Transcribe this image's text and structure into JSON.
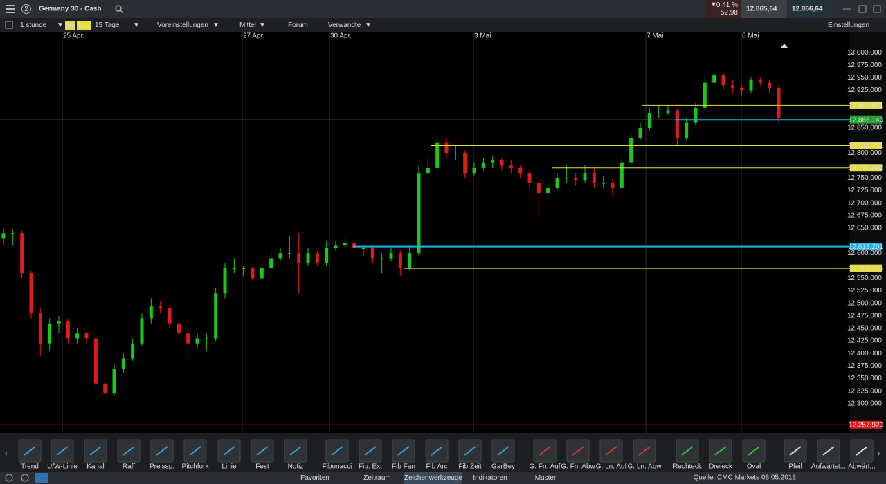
{
  "header": {
    "badge": "2",
    "title": "Germany 30 - Cash",
    "change_pct": "0,41 %",
    "change_abs": "52,98",
    "sell": "12.865,64",
    "buy": "12.866,64"
  },
  "toolbar": {
    "interval": "1 stunde",
    "quick1": "5m",
    "quick2": "1std",
    "range": "15 Tage",
    "presets": "Voreinstellungen",
    "size": "Mittel",
    "forum": "Forum",
    "related": "Verwandte",
    "settings": "Einstellungen"
  },
  "chart": {
    "type": "candlestick",
    "dates": [
      "25 Apr.",
      "27 Apr.",
      "30 Apr.",
      "3 Mai",
      "7 Mai",
      "8 Mai"
    ],
    "ylim": [
      12250,
      13025
    ],
    "yticks": [
      {
        "value": 13000,
        "label": "13.000.000"
      },
      {
        "value": 12975,
        "label": "12.975.000"
      },
      {
        "value": 12950,
        "label": "12.950.000"
      },
      {
        "value": 12925,
        "label": "12.925.000"
      },
      {
        "value": 12850,
        "label": "12.850.000"
      },
      {
        "value": 12800,
        "label": "12.800.000"
      },
      {
        "value": 12750,
        "label": "12.750.000"
      },
      {
        "value": 12725,
        "label": "12.725.000"
      },
      {
        "value": 12700,
        "label": "12.700.000"
      },
      {
        "value": 12675,
        "label": "12.675.000"
      },
      {
        "value": 12650,
        "label": "12.650.000"
      },
      {
        "value": 12600,
        "label": "12.600.000"
      },
      {
        "value": 12550,
        "label": "12.550.000"
      },
      {
        "value": 12525,
        "label": "12.525.000"
      },
      {
        "value": 12500,
        "label": "12.500.000"
      },
      {
        "value": 12475,
        "label": "12.475.000"
      },
      {
        "value": 12450,
        "label": "12.450.000"
      },
      {
        "value": 12425,
        "label": "12.425.000"
      },
      {
        "value": 12400,
        "label": "12.400.000"
      },
      {
        "value": 12375,
        "label": "12.375.000"
      },
      {
        "value": 12350,
        "label": "12.350.000"
      },
      {
        "value": 12325,
        "label": "12.325.000"
      },
      {
        "value": 12300,
        "label": "12.300.000"
      }
    ],
    "up_color": "#19c819",
    "down_color": "#e01b1b",
    "candles": [
      [
        12630,
        12650,
        12615,
        12640
      ],
      [
        12640,
        12648,
        12615,
        12640
      ],
      [
        12640,
        12645,
        12550,
        12560
      ],
      [
        12560,
        12565,
        12470,
        12480
      ],
      [
        12480,
        12490,
        12395,
        12420
      ],
      [
        12420,
        12470,
        12405,
        12460
      ],
      [
        12460,
        12475,
        12440,
        12465
      ],
      [
        12465,
        12470,
        12420,
        12430
      ],
      [
        12430,
        12450,
        12420,
        12440
      ],
      [
        12440,
        12445,
        12420,
        12430
      ],
      [
        12430,
        12435,
        12330,
        12340
      ],
      [
        12340,
        12350,
        12310,
        12320
      ],
      [
        12320,
        12380,
        12315,
        12370
      ],
      [
        12370,
        12400,
        12360,
        12390
      ],
      [
        12390,
        12430,
        12385,
        12420
      ],
      [
        12420,
        12480,
        12415,
        12470
      ],
      [
        12470,
        12510,
        12460,
        12495
      ],
      [
        12495,
        12505,
        12480,
        12490
      ],
      [
        12490,
        12495,
        12450,
        12460
      ],
      [
        12460,
        12470,
        12430,
        12440
      ],
      [
        12440,
        12450,
        12385,
        12420
      ],
      [
        12420,
        12440,
        12410,
        12430
      ],
      [
        12430,
        12440,
        12405,
        12430
      ],
      [
        12430,
        12530,
        12425,
        12520
      ],
      [
        12520,
        12580,
        12510,
        12570
      ],
      [
        12570,
        12590,
        12560,
        12570
      ],
      [
        12570,
        12575,
        12555,
        12570
      ],
      [
        12570,
        12575,
        12545,
        12550
      ],
      [
        12550,
        12580,
        12545,
        12570
      ],
      [
        12570,
        12600,
        12565,
        12590
      ],
      [
        12590,
        12610,
        12585,
        12600
      ],
      [
        12600,
        12635,
        12590,
        12600
      ],
      [
        12600,
        12640,
        12520,
        12580
      ],
      [
        12580,
        12610,
        12575,
        12600
      ],
      [
        12600,
        12605,
        12575,
        12580
      ],
      [
        12580,
        12625,
        12575,
        12610
      ],
      [
        12610,
        12625,
        12605,
        12615
      ],
      [
        12615,
        12630,
        12610,
        12620
      ],
      [
        12620,
        12625,
        12600,
        12610
      ],
      [
        12610,
        12615,
        12595,
        12610
      ],
      [
        12610,
        12615,
        12580,
        12590
      ],
      [
        12590,
        12600,
        12560,
        12590
      ],
      [
        12590,
        12610,
        12585,
        12600
      ],
      [
        12600,
        12605,
        12555,
        12570
      ],
      [
        12570,
        12615,
        12565,
        12600
      ],
      [
        12600,
        12775,
        12595,
        12760
      ],
      [
        12760,
        12790,
        12750,
        12770
      ],
      [
        12770,
        12835,
        12765,
        12820
      ],
      [
        12820,
        12830,
        12790,
        12800
      ],
      [
        12800,
        12815,
        12785,
        12800
      ],
      [
        12800,
        12805,
        12750,
        12760
      ],
      [
        12760,
        12780,
        12755,
        12770
      ],
      [
        12770,
        12790,
        12765,
        12780
      ],
      [
        12780,
        12795,
        12770,
        12785
      ],
      [
        12785,
        12790,
        12765,
        12775
      ],
      [
        12775,
        12785,
        12760,
        12770
      ],
      [
        12770,
        12775,
        12750,
        12760
      ],
      [
        12760,
        12765,
        12730,
        12740
      ],
      [
        12740,
        12745,
        12670,
        12720
      ],
      [
        12720,
        12740,
        12710,
        12730
      ],
      [
        12730,
        12760,
        12725,
        12750
      ],
      [
        12750,
        12775,
        12740,
        12750
      ],
      [
        12750,
        12760,
        12735,
        12745
      ],
      [
        12745,
        12775,
        12740,
        12760
      ],
      [
        12760,
        12770,
        12730,
        12740
      ],
      [
        12740,
        12755,
        12730,
        12740
      ],
      [
        12740,
        12750,
        12715,
        12730
      ],
      [
        12730,
        12790,
        12725,
        12780
      ],
      [
        12780,
        12840,
        12775,
        12830
      ],
      [
        12830,
        12860,
        12825,
        12850
      ],
      [
        12850,
        12890,
        12845,
        12880
      ],
      [
        12880,
        12895,
        12870,
        12880
      ],
      [
        12880,
        12895,
        12875,
        12885
      ],
      [
        12885,
        12890,
        12815,
        12830
      ],
      [
        12830,
        12870,
        12825,
        12860
      ],
      [
        12860,
        12900,
        12855,
        12890
      ],
      [
        12890,
        12950,
        12885,
        12940
      ],
      [
        12940,
        12965,
        12935,
        12955
      ],
      [
        12955,
        12960,
        12925,
        12935
      ],
      [
        12935,
        12945,
        12920,
        12930
      ],
      [
        12930,
        12935,
        12915,
        12925
      ],
      [
        12925,
        12950,
        12920,
        12945
      ],
      [
        12945,
        12950,
        12935,
        12940
      ],
      [
        12940,
        12945,
        12920,
        12930
      ],
      [
        12930,
        12935,
        12860,
        12870
      ]
    ],
    "levels": [
      {
        "value": 12894.931,
        "label": "12.894.931",
        "color": "#e6dc3c",
        "tag": "#e6dc3c"
      },
      {
        "value": 12866.14,
        "label": "12.866.140",
        "color": "#1eb4e6",
        "tag": "#1e9e2a"
      },
      {
        "value": 12814.721,
        "label": "12.814.721",
        "color": "#e6dc3c",
        "tag": "#e6dc3c"
      },
      {
        "value": 12770.28,
        "label": "12.770.280",
        "color": "#e6dc3c",
        "tag": "#e6dc3c"
      },
      {
        "value": 12613.201,
        "label": "12.613.201",
        "color": "#1eb4e6",
        "tag": "#1eb4e6"
      },
      {
        "value": 12569.755,
        "label": "12.569.755",
        "color": "#e6dc3c",
        "tag": "#e6dc3c"
      },
      {
        "value": 12257.92,
        "label": "12.257.920",
        "color": "#e01b1b",
        "tag": "#e01b1b"
      }
    ]
  },
  "tools": [
    "Trend",
    "U/W-Linie",
    "Kanal",
    "Raff",
    "Preissp.",
    "Pitchfork",
    "Linie",
    "Fest",
    "Notiz",
    "Fibonacci",
    "Fib. Ext",
    "Fib Fan",
    "Fib Arc",
    "Fib Zeit",
    "GarBey",
    "G. Fn. Auf",
    "G. Fn. Abw",
    "G. Ln. Auf",
    "G. Ln. Abw",
    "Rechteck",
    "Dreieck",
    "Oval",
    "Pfeil",
    "Aufwärtst...",
    "Abwärt..."
  ],
  "tabs": [
    "Favoriten",
    "Zeitraum",
    "Zeichenwerkzeuge",
    "Indikatoren",
    "Muster"
  ],
  "watermark": "Quelle: CMC Markets 08.05.2018"
}
